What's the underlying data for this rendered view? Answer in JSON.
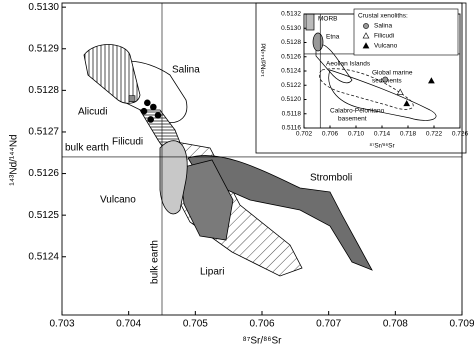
{
  "chart_data": [
    {
      "type": "scatter",
      "x_label": "⁸⁷Sr/⁸⁶Sr",
      "y_label": "¹⁴³Nd/¹⁴⁴Nd",
      "xlim": [
        0.703,
        0.709
      ],
      "xticks": [
        0.703,
        0.704,
        0.705,
        0.706,
        0.707,
        0.708,
        0.709
      ],
      "ylim": [
        0.51226,
        0.51301
      ],
      "yticks": [
        {
          "value": 0.5124,
          "label": "0.5124"
        },
        0.5125,
        0.5126,
        0.5127,
        0.5128,
        0.5129,
        {
          "value": 0.513,
          "label": "0.5130"
        }
      ],
      "grid": false,
      "reference_lines": [
        {
          "label": "bulk earth",
          "x": 0.7045
        },
        {
          "label": "bulk earth",
          "y": 0.51264
        }
      ],
      "series": [
        {
          "color": "#000000",
          "marker": "circle",
          "x": [
            0.70428,
            0.70437,
            0.70423,
            0.70444,
            0.70433
          ],
          "values": [
            0.51277,
            0.51276,
            0.51275,
            0.51274,
            0.51273
          ]
        },
        {
          "color": "#888888",
          "marker": "square",
          "x": [
            0.70405
          ],
          "values": [
            0.51278
          ]
        }
      ],
      "annotations": [
        "Alicudi",
        "Salina",
        "Filicudi",
        "Vulcano",
        "Stromboli",
        "Lipari"
      ]
    },
    {
      "type": "scatter",
      "x_label": "⁸⁷Sr/⁸⁶Sr",
      "y_label": "¹⁴³Nd/¹⁴⁴Nd",
      "xlim": [
        0.702,
        0.726
      ],
      "xticks": [
        0.702,
        0.706,
        {
          "value": 0.71,
          "label": "0.710"
        },
        0.714,
        0.718,
        0.722,
        0.726
      ],
      "ylim": [
        0.5116,
        0.5132
      ],
      "yticks": [
        0.5116,
        0.5118,
        {
          "value": 0.512,
          "label": "0.5120"
        },
        0.5122,
        0.5124,
        0.5126,
        0.5128,
        {
          "value": 0.513,
          "label": "0.5130"
        },
        0.5132
      ],
      "grid": false,
      "reference_lines": [
        {
          "x": 0.7045
        },
        {
          "y": 0.51264
        }
      ],
      "legend_title": "Crustal xenoliths:",
      "series": [
        {
          "name": "Salina",
          "color": "#999999",
          "marker": "circle",
          "x": [
            0.7145
          ],
          "values": [
            0.51228
          ]
        },
        {
          "name": "Filicudi",
          "color": "#ffffff",
          "marker": "triangle",
          "x": [
            0.7168
          ],
          "values": [
            0.5121
          ]
        },
        {
          "name": "Vulcano",
          "color": "#000000",
          "marker": "triangle",
          "x": [
            0.7178,
            0.7216
          ],
          "values": [
            0.51194,
            0.51226
          ]
        }
      ],
      "annotations": [
        "MORB",
        "Etna",
        "Aeolian Islands",
        "Global marine",
        "sediments",
        "Calabro-Peloritano",
        "basement"
      ]
    }
  ]
}
